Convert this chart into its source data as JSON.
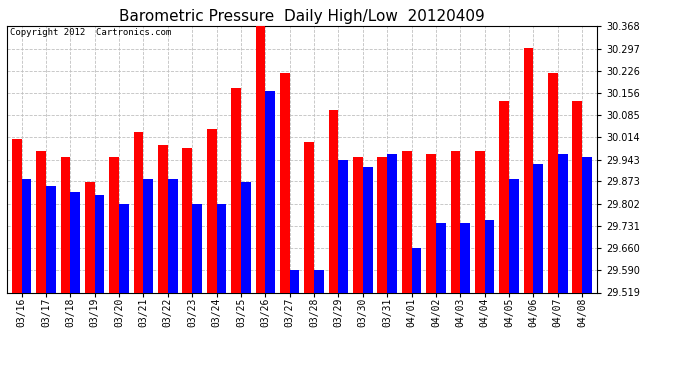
{
  "title": "Barometric Pressure  Daily High/Low  20120409",
  "copyright": "Copyright 2012  Cartronics.com",
  "categories": [
    "03/16",
    "03/17",
    "03/18",
    "03/19",
    "03/20",
    "03/21",
    "03/22",
    "03/23",
    "03/24",
    "03/25",
    "03/26",
    "03/27",
    "03/28",
    "03/29",
    "03/30",
    "03/31",
    "04/01",
    "04/02",
    "04/03",
    "04/04",
    "04/05",
    "04/06",
    "04/07",
    "04/08"
  ],
  "highs": [
    30.01,
    29.97,
    29.95,
    29.87,
    29.95,
    30.03,
    29.99,
    29.98,
    30.04,
    30.17,
    30.38,
    30.22,
    30.0,
    30.1,
    29.95,
    29.95,
    29.97,
    29.96,
    29.97,
    29.97,
    30.13,
    30.3,
    30.22,
    30.13
  ],
  "lows": [
    29.88,
    29.86,
    29.84,
    29.83,
    29.8,
    29.88,
    29.88,
    29.8,
    29.8,
    29.87,
    30.16,
    29.59,
    29.59,
    29.94,
    29.92,
    29.96,
    29.66,
    29.74,
    29.74,
    29.75,
    29.88,
    29.93,
    29.96,
    29.95
  ],
  "high_color": "#ff0000",
  "low_color": "#0000ff",
  "background_color": "#ffffff",
  "grid_color": "#c0c0c0",
  "ymin": 29.519,
  "ymax": 30.368,
  "yticks": [
    29.519,
    29.59,
    29.66,
    29.731,
    29.802,
    29.873,
    29.943,
    30.014,
    30.085,
    30.156,
    30.226,
    30.297,
    30.368
  ],
  "bar_width": 0.4,
  "title_fontsize": 11,
  "tick_fontsize": 7,
  "copyright_fontsize": 6.5
}
